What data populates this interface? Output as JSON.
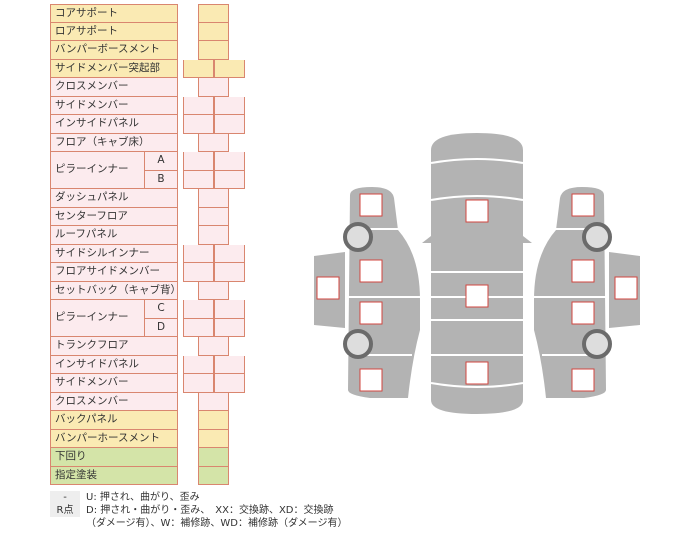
{
  "rows": [
    {
      "label": "コアサポート",
      "type": "single",
      "color": "yellow"
    },
    {
      "label": "ロアサポート",
      "type": "single",
      "color": "yellow"
    },
    {
      "label": "バンパーボースメント",
      "type": "single",
      "color": "yellow"
    },
    {
      "label": "サイドメンバー突起部",
      "type": "double",
      "color": "yellow"
    },
    {
      "label": "クロスメンバー",
      "type": "single",
      "color": "pink"
    },
    {
      "label": "サイドメンバー",
      "type": "double",
      "color": "pink"
    },
    {
      "label": "インサイドパネル",
      "type": "double",
      "color": "pink"
    },
    {
      "label": "フロア（キャブ床）",
      "type": "single",
      "color": "pink"
    },
    {
      "label": "ピラーインナー",
      "sub": [
        "A",
        "B"
      ],
      "type": "double",
      "color": "pink"
    },
    {
      "label": "ダッシュパネル",
      "type": "single",
      "color": "pink"
    },
    {
      "label": "センターフロア",
      "type": "single",
      "color": "pink"
    },
    {
      "label": "ルーフパネル",
      "type": "single",
      "color": "pink"
    },
    {
      "label": "サイドシルインナー",
      "type": "double",
      "color": "pink"
    },
    {
      "label": "フロアサイドメンバー",
      "type": "double",
      "color": "pink"
    },
    {
      "label": "セットバック（キャブ背）",
      "type": "single",
      "color": "pink"
    },
    {
      "label": "ピラーインナー",
      "sub": [
        "C",
        "D"
      ],
      "type": "double",
      "color": "pink"
    },
    {
      "label": "トランクフロア",
      "type": "single",
      "color": "pink"
    },
    {
      "label": "インサイドパネル",
      "type": "double",
      "color": "pink"
    },
    {
      "label": "サイドメンバー",
      "type": "double",
      "color": "pink"
    },
    {
      "label": "クロスメンバー",
      "type": "single",
      "color": "pink"
    },
    {
      "label": "バックパネル",
      "type": "single",
      "color": "yellow"
    },
    {
      "label": "バンパーホースメント",
      "type": "single",
      "color": "yellow"
    },
    {
      "label": "下回り",
      "type": "single",
      "color": "green"
    },
    {
      "label": "指定塗装",
      "type": "single",
      "color": "green"
    }
  ],
  "legend": {
    "items": [
      {
        "key": "-",
        "text": "U: 押され、曲がり、歪み"
      },
      {
        "key": "R点",
        "text": "D: 押され・曲がり・歪み、　XX：交換跡、XD：交換跡"
      },
      {
        "key": "",
        "text": "（ダメージ有）、W：補修跡、WD：補修跡（ダメージ有）"
      }
    ]
  },
  "colors": {
    "yellow": "#faeab3",
    "pink": "#fcebee",
    "green": "#d4e4a8",
    "border": "#d9866f",
    "car": "#b3b3b3",
    "mark": "#d0453f"
  }
}
